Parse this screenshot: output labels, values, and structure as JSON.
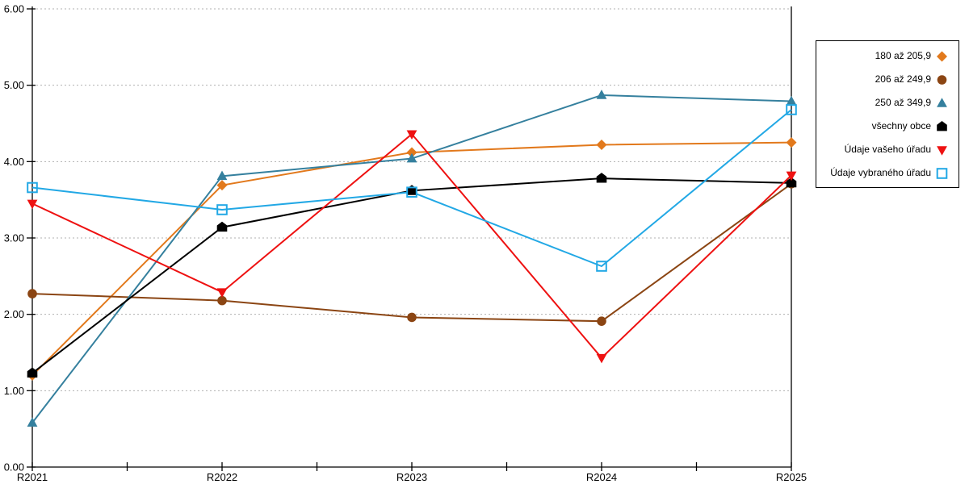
{
  "chart_data": {
    "type": "line",
    "title": "",
    "xlabel": "",
    "ylabel": "",
    "categories": [
      "R2021",
      "R2022",
      "R2023",
      "R2024",
      "R2025"
    ],
    "series": [
      {
        "name": "180 až 205,9",
        "marker": "diamond",
        "color": "#E2791C",
        "values": [
          1.2,
          3.69,
          4.12,
          4.22,
          4.25
        ]
      },
      {
        "name": "206 až 249,9",
        "marker": "circle",
        "color": "#8B4513",
        "values": [
          2.27,
          2.18,
          1.96,
          1.91,
          3.71
        ]
      },
      {
        "name": "250 až 349,9",
        "marker": "triangle-up",
        "color": "#35809E",
        "values": [
          0.58,
          3.81,
          4.04,
          4.87,
          4.79
        ]
      },
      {
        "name": "všechny obce",
        "marker": "pentagon",
        "color": "#000000",
        "values": [
          1.23,
          3.14,
          3.62,
          3.78,
          3.72
        ]
      },
      {
        "name": "Údaje vašeho úřadu",
        "marker": "triangle-down",
        "color": "#EE1111",
        "values": [
          3.45,
          2.29,
          4.36,
          1.43,
          3.82
        ]
      },
      {
        "name": "Údaje vybraného úřadu",
        "marker": "square-open",
        "color": "#22A8E5",
        "values": [
          3.66,
          3.37,
          3.6,
          2.63,
          4.68
        ]
      }
    ],
    "ylim": [
      0,
      6
    ],
    "ytick_interval": 1,
    "ytick_labels": [
      "0.00",
      "1.00",
      "2.00",
      "3.00",
      "4.00",
      "5.00",
      "6.00"
    ],
    "grid": "horizontal-dotted",
    "legend_position": "right"
  },
  "colors": {
    "background": "#ffffff",
    "axis": "#000000",
    "grid": "#b0b0b0"
  }
}
